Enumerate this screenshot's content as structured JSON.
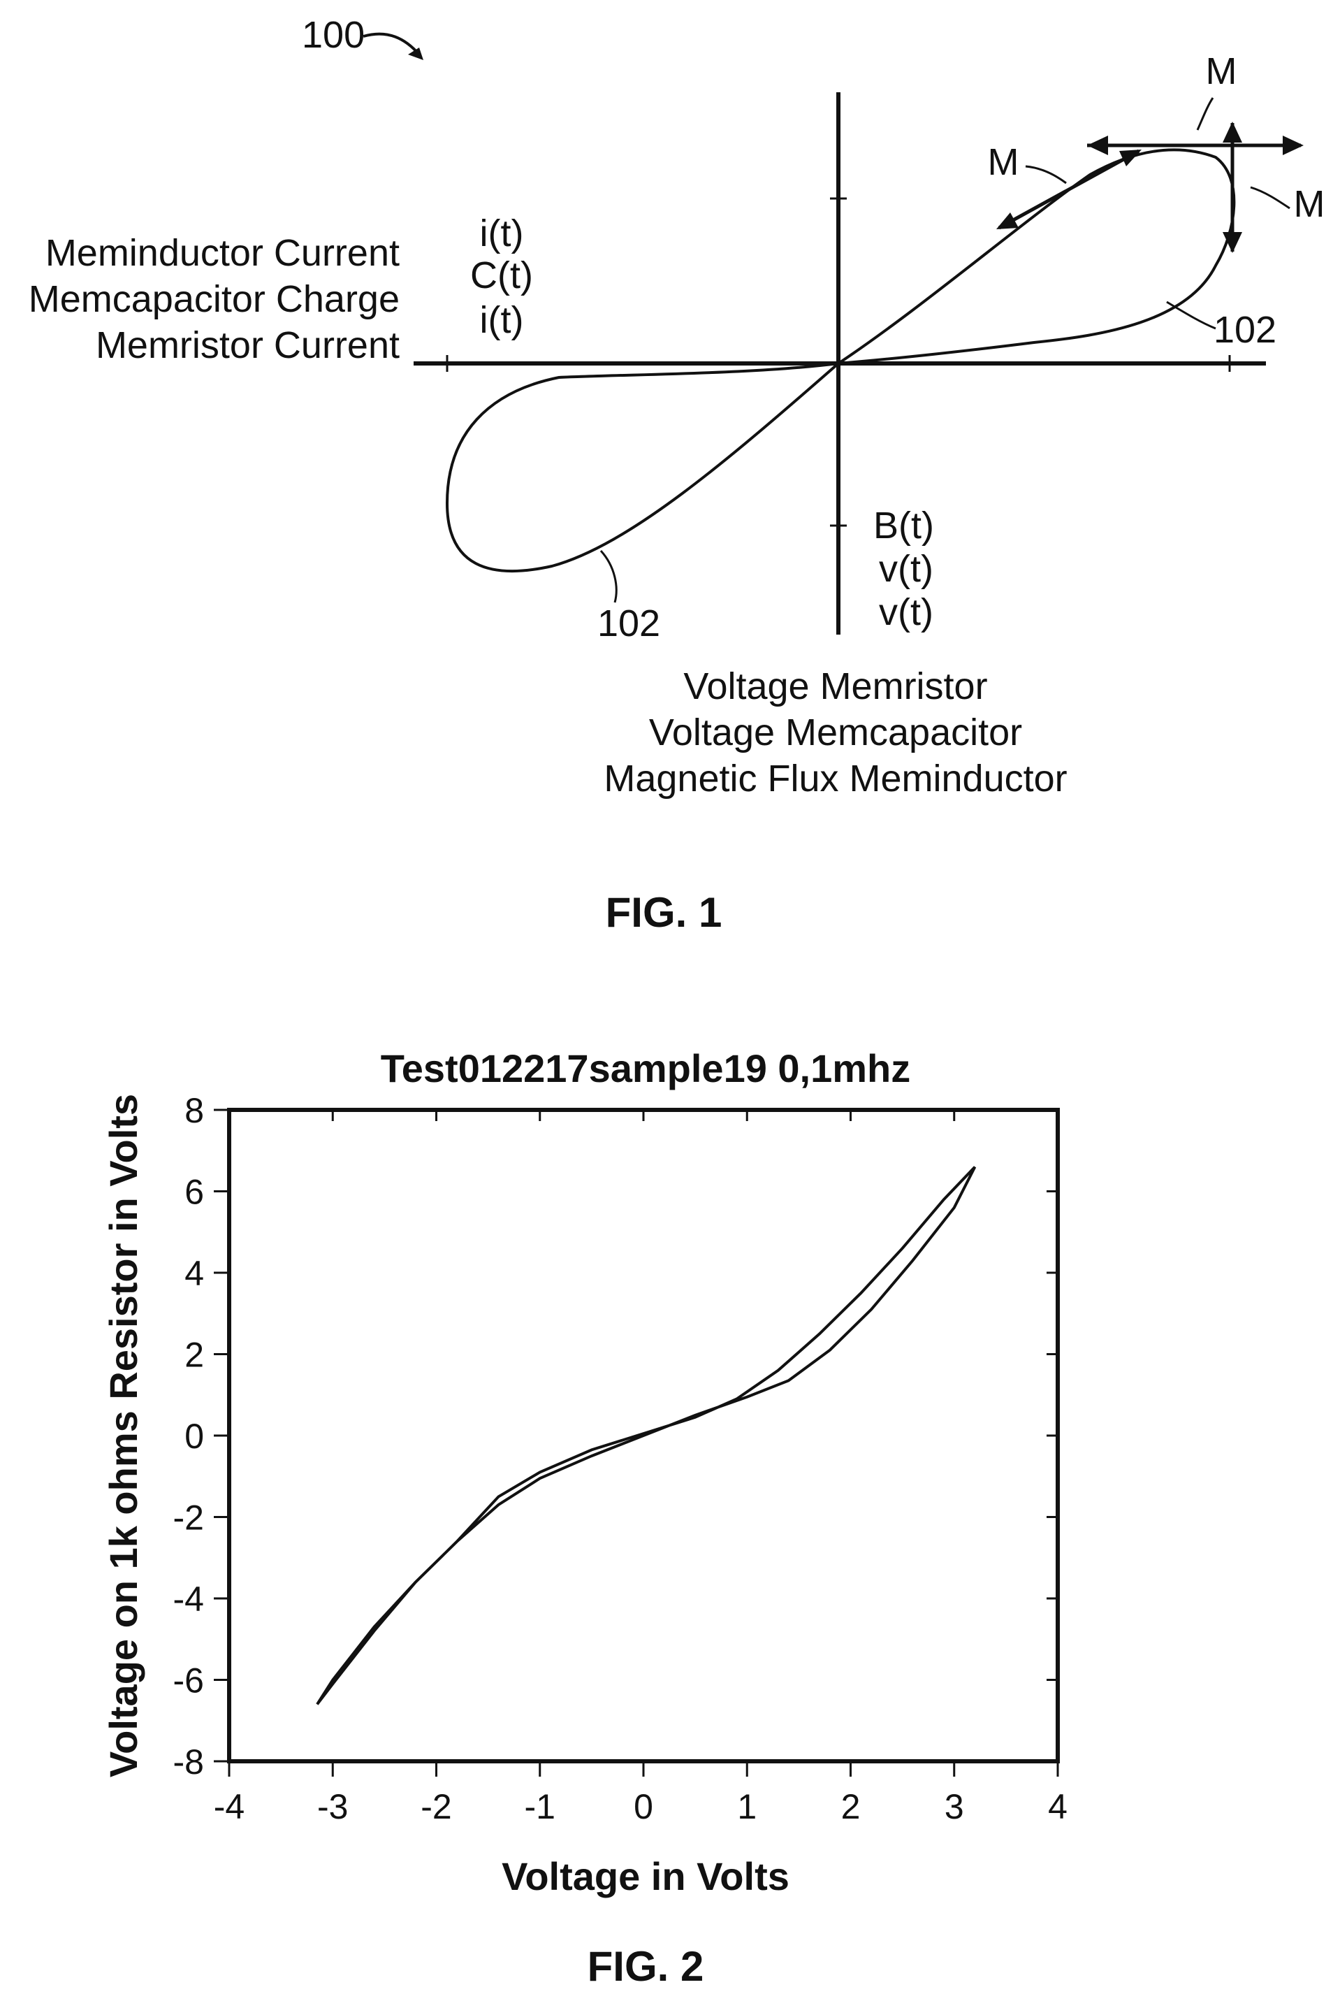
{
  "fig1": {
    "ref_main": "100",
    "left_labels": [
      "Meminductor Current",
      "Memcapacitor Charge",
      "Memristor Current"
    ],
    "left_symbols": [
      "i(t)",
      "C(t)",
      "i(t)"
    ],
    "bottom_symbols": [
      "B(t)",
      "v(t)",
      "v(t)"
    ],
    "bottom_labels": [
      "Voltage Memristor",
      "Voltage Memcapacitor",
      "Magnetic Flux Meminductor"
    ],
    "m_labels": [
      "M",
      "M",
      "M"
    ],
    "curve_ref_right": "102",
    "curve_ref_left": "102",
    "caption": "FIG. 1"
  },
  "fig2": {
    "caption": "FIG. 2",
    "chart_data": {
      "type": "line",
      "title": "Test012217sample19 0,1mhz",
      "xlabel": "Voltage in Volts",
      "ylabel": "Voltage on 1k ohms Resistor in Volts",
      "xlim": [
        -4,
        4
      ],
      "ylim": [
        -8,
        8
      ],
      "xticks": [
        -4,
        -3,
        -2,
        -1,
        0,
        1,
        2,
        3,
        4
      ],
      "yticks": [
        -8,
        -6,
        -4,
        -2,
        0,
        2,
        4,
        6,
        8
      ],
      "grid": false,
      "series": [
        {
          "values_upper_branch": [
            [
              -3.15,
              -6.6
            ],
            [
              -3.0,
              -6.0
            ],
            [
              -2.6,
              -4.7
            ],
            [
              -2.2,
              -3.6
            ],
            [
              -1.8,
              -2.6
            ],
            [
              -1.4,
              -1.5
            ],
            [
              -1.0,
              -0.9
            ],
            [
              -0.5,
              -0.35
            ],
            [
              0.0,
              0.05
            ],
            [
              0.5,
              0.45
            ],
            [
              0.9,
              0.9
            ],
            [
              1.3,
              1.6
            ],
            [
              1.7,
              2.5
            ],
            [
              2.1,
              3.5
            ],
            [
              2.5,
              4.6
            ],
            [
              2.9,
              5.8
            ],
            [
              3.2,
              6.6
            ]
          ],
          "values_lower_branch": [
            [
              3.2,
              6.6
            ],
            [
              3.0,
              5.6
            ],
            [
              2.6,
              4.3
            ],
            [
              2.2,
              3.1
            ],
            [
              1.8,
              2.1
            ],
            [
              1.4,
              1.35
            ],
            [
              1.0,
              0.95
            ],
            [
              0.5,
              0.5
            ],
            [
              0.0,
              0.0
            ],
            [
              -0.5,
              -0.5
            ],
            [
              -1.0,
              -1.05
            ],
            [
              -1.4,
              -1.7
            ],
            [
              -1.8,
              -2.6
            ],
            [
              -2.2,
              -3.6
            ],
            [
              -2.6,
              -4.8
            ],
            [
              -3.0,
              -6.1
            ],
            [
              -3.15,
              -6.6
            ]
          ]
        }
      ]
    }
  }
}
